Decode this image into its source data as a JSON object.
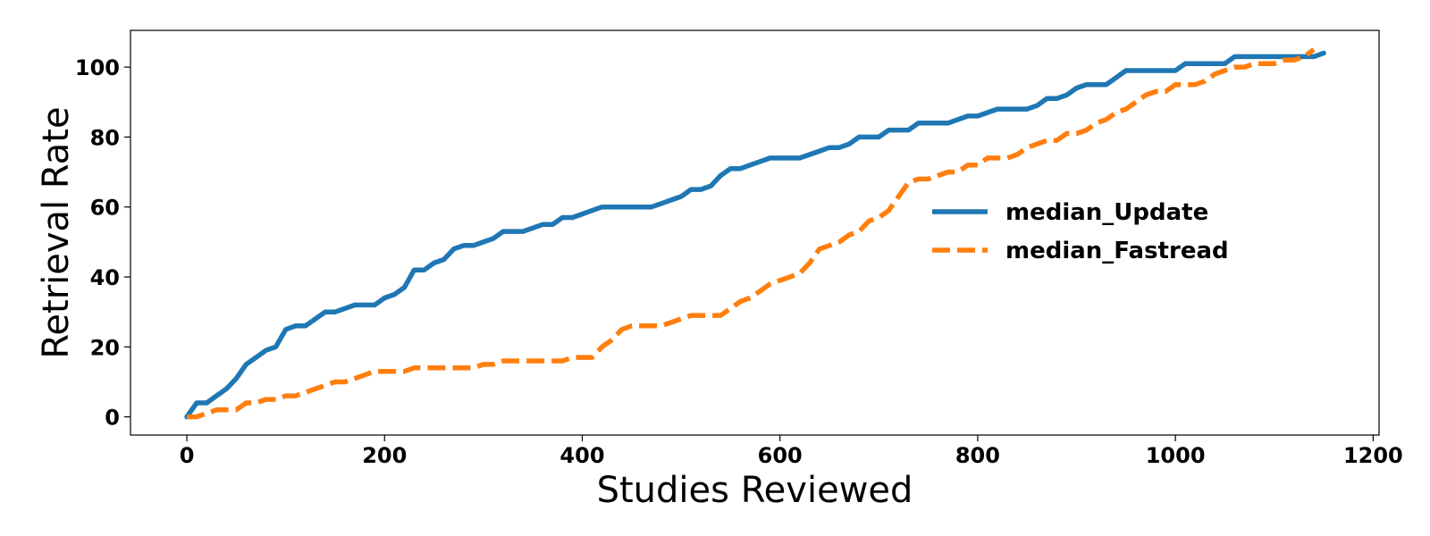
{
  "chart_data": {
    "type": "line",
    "xlabel": "Studies Reviewed",
    "ylabel": "Retrieval Rate",
    "xlim": [
      -57,
      1206
    ],
    "ylim": [
      -5.2,
      110.5
    ],
    "xticks": [
      0,
      200,
      400,
      600,
      800,
      1000,
      1200
    ],
    "yticks": [
      0,
      20,
      40,
      60,
      80,
      100
    ],
    "grid": false,
    "legend_position": "center-right",
    "series": [
      {
        "name": "median_Update",
        "color": "#1f77b4",
        "style": "solid",
        "x": [
          0,
          10,
          20,
          30,
          40,
          50,
          60,
          70,
          80,
          90,
          100,
          110,
          120,
          130,
          140,
          150,
          160,
          170,
          180,
          190,
          200,
          210,
          220,
          230,
          240,
          250,
          260,
          270,
          280,
          290,
          300,
          310,
          320,
          330,
          340,
          350,
          360,
          370,
          380,
          390,
          400,
          410,
          420,
          430,
          440,
          450,
          460,
          470,
          480,
          490,
          500,
          510,
          520,
          530,
          540,
          550,
          560,
          570,
          580,
          590,
          600,
          610,
          620,
          630,
          640,
          650,
          660,
          670,
          680,
          690,
          700,
          710,
          720,
          730,
          740,
          750,
          760,
          770,
          780,
          790,
          800,
          810,
          820,
          830,
          840,
          850,
          860,
          870,
          880,
          890,
          900,
          910,
          920,
          930,
          940,
          950,
          960,
          970,
          980,
          990,
          1000,
          1010,
          1020,
          1030,
          1040,
          1050,
          1060,
          1070,
          1080,
          1090,
          1100,
          1110,
          1120,
          1130,
          1140,
          1150
        ],
        "y": [
          0,
          4,
          4,
          6,
          8,
          11,
          15,
          17,
          19,
          20,
          25,
          26,
          26,
          28,
          30,
          30,
          31,
          32,
          32,
          32,
          34,
          35,
          37,
          42,
          42,
          44,
          45,
          48,
          49,
          49,
          50,
          51,
          53,
          53,
          53,
          54,
          55,
          55,
          57,
          57,
          58,
          59,
          60,
          60,
          60,
          60,
          60,
          60,
          61,
          62,
          63,
          65,
          65,
          66,
          69,
          71,
          71,
          72,
          73,
          74,
          74,
          74,
          74,
          75,
          76,
          77,
          77,
          78,
          80,
          80,
          80,
          82,
          82,
          82,
          84,
          84,
          84,
          84,
          85,
          86,
          86,
          87,
          88,
          88,
          88,
          88,
          89,
          91,
          91,
          92,
          94,
          95,
          95,
          95,
          97,
          99,
          99,
          99,
          99,
          99,
          99,
          101,
          101,
          101,
          101,
          101,
          103,
          103,
          103,
          103,
          103,
          103,
          103,
          103,
          103,
          104
        ]
      },
      {
        "name": "median_Fastread",
        "color": "#ff7f0e",
        "style": "dashed",
        "x": [
          0,
          10,
          20,
          30,
          40,
          50,
          60,
          70,
          80,
          90,
          100,
          110,
          120,
          130,
          140,
          150,
          160,
          170,
          180,
          190,
          200,
          210,
          220,
          230,
          240,
          250,
          260,
          270,
          280,
          290,
          300,
          310,
          320,
          330,
          340,
          350,
          360,
          370,
          380,
          390,
          400,
          410,
          420,
          430,
          440,
          450,
          460,
          470,
          480,
          490,
          500,
          510,
          520,
          530,
          540,
          550,
          560,
          570,
          580,
          590,
          600,
          610,
          620,
          630,
          640,
          650,
          660,
          670,
          680,
          690,
          700,
          710,
          720,
          730,
          740,
          750,
          760,
          770,
          780,
          790,
          800,
          810,
          820,
          830,
          840,
          850,
          860,
          870,
          880,
          890,
          900,
          910,
          920,
          930,
          940,
          950,
          960,
          970,
          980,
          990,
          1000,
          1010,
          1020,
          1030,
          1040,
          1050,
          1060,
          1070,
          1080,
          1090,
          1100,
          1110,
          1120,
          1130,
          1140
        ],
        "y": [
          0,
          0,
          1,
          2,
          2,
          2,
          4,
          4,
          5,
          5,
          6,
          6,
          7,
          8,
          9,
          10,
          10,
          11,
          12,
          13,
          13,
          13,
          13,
          14,
          14,
          14,
          14,
          14,
          14,
          14,
          15,
          15,
          16,
          16,
          16,
          16,
          16,
          16,
          16,
          17,
          17,
          17,
          20,
          22,
          25,
          26,
          26,
          26,
          26,
          27,
          28,
          29,
          29,
          29,
          29,
          31,
          33,
          34,
          36,
          38,
          39,
          40,
          41,
          44,
          48,
          49,
          50,
          52,
          53,
          56,
          57,
          59,
          63,
          67,
          68,
          68,
          69,
          70,
          70,
          72,
          72,
          74,
          74,
          74,
          75,
          77,
          78,
          79,
          79,
          81,
          81,
          82,
          84,
          85,
          87,
          88,
          90,
          92,
          93,
          93,
          95,
          95,
          95,
          96,
          98,
          99,
          100,
          100,
          101,
          101,
          101,
          102,
          102,
          103,
          105
        ]
      }
    ]
  }
}
